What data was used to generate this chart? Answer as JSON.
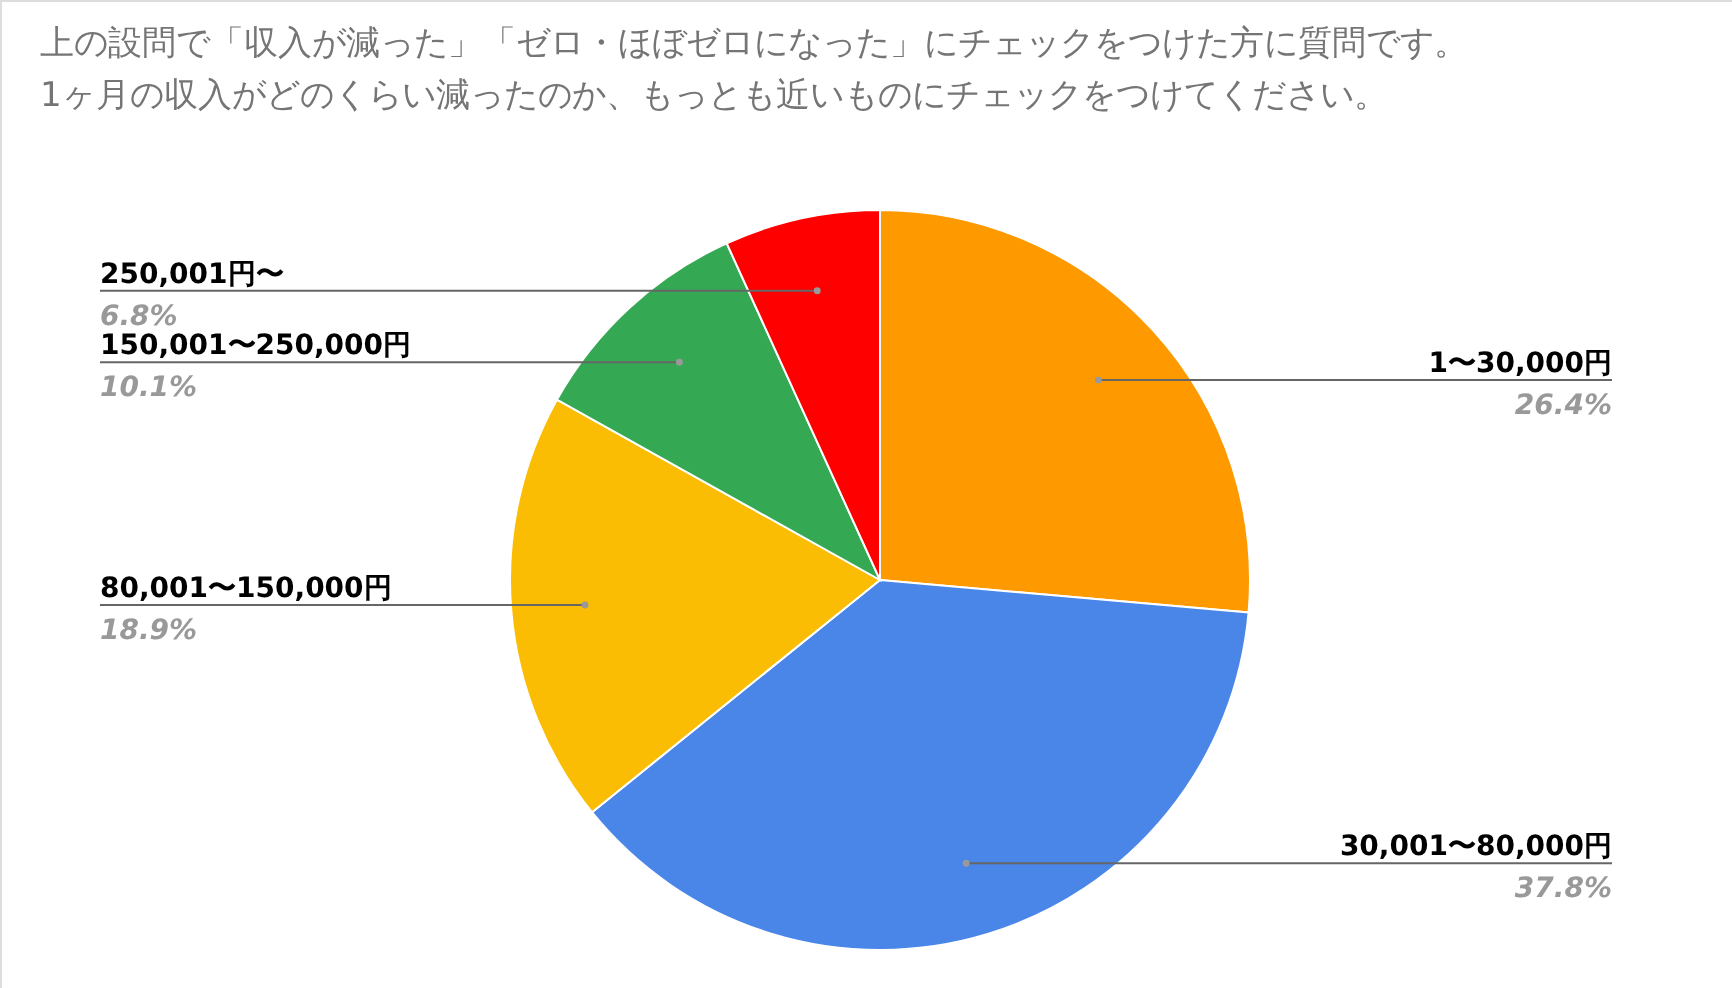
{
  "chart_data": {
    "type": "pie",
    "title": "上の設問で「収入が減った」「ゼロ・ほぼゼロになった」にチェックをつけた方に質問です。1ヶ月の収入がどのくらい減ったのか、もっとも近いものにチェックをつけてください。",
    "categories": [
      "1〜30,000円",
      "30,001〜80,000円",
      "80,001〜150,000円",
      "150,001〜250,000円",
      "250,001円〜"
    ],
    "values": [
      26.4,
      37.8,
      18.9,
      10.1,
      6.8
    ],
    "value_labels": [
      "26.4%",
      "37.8%",
      "18.9%",
      "10.1%",
      "6.8%"
    ],
    "colors": [
      "#ff9900",
      "#4a86e8",
      "#fbbc04",
      "#34a853",
      "#ff0000"
    ]
  }
}
